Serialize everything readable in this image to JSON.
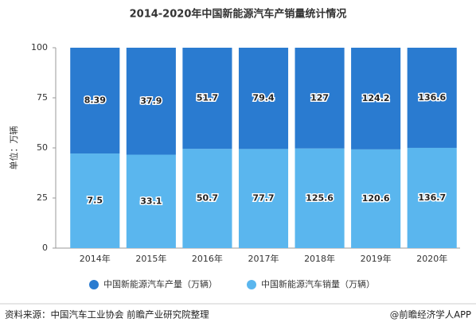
{
  "chart_data": {
    "type": "bar",
    "stacking": "percent",
    "title": "2014-2020年中国新能源汽车产销量统计情况",
    "y_label": "单位：万辆",
    "categories": [
      "2014年",
      "2015年",
      "2016年",
      "2017年",
      "2018年",
      "2019年",
      "2020年"
    ],
    "series": [
      {
        "name": "中国新能源汽车产量（万辆）",
        "color": "#2a7bd0",
        "values": [
          8.39,
          37.9,
          51.7,
          79.4,
          127,
          124.2,
          136.6
        ]
      },
      {
        "name": "中国新能源汽车销量（万辆）",
        "color": "#5ab6ee",
        "values": [
          7.5,
          33.1,
          50.7,
          77.7,
          125.6,
          120.6,
          136.7
        ]
      }
    ],
    "ylim": [
      0,
      100
    ],
    "yticks": [
      0,
      25,
      50,
      75,
      100
    ],
    "legend": "bottom",
    "source": "资料来源：中国汽车工业协会 前瞻产业研究院整理",
    "credit": "@前瞻经济学人APP"
  }
}
